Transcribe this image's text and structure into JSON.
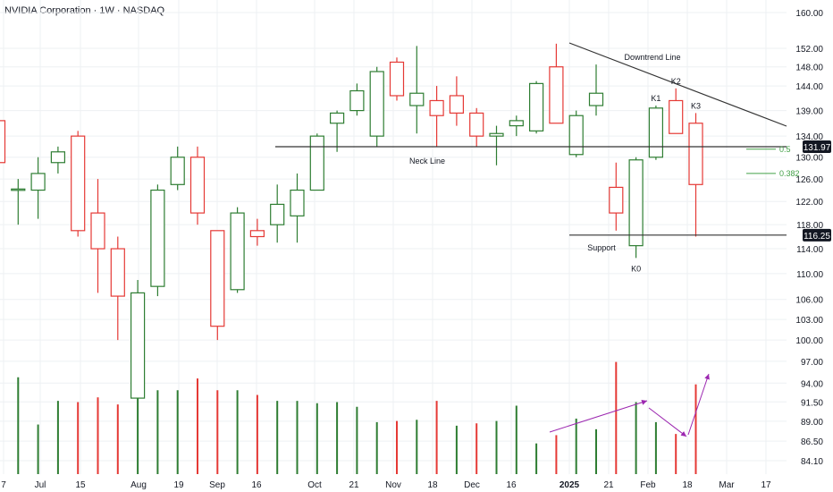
{
  "header": {
    "title": "NVIDIA Corporation · 1W · NASDAQ"
  },
  "colors": {
    "up": "#2e7d32",
    "down": "#e53935",
    "vol_up": "#2e7d32",
    "vol_down": "#e53935",
    "line": "#333333",
    "fib": "#43a047",
    "arrow": "#9c27b0",
    "grid": "#eef0f3",
    "text": "#131722"
  },
  "chart_data": {
    "type": "candlestick",
    "y_axis": {
      "ticks": [
        160.0,
        152.0,
        148.0,
        144.0,
        139.0,
        134.0,
        130.0,
        126.0,
        122.0,
        118.0,
        114.0,
        110.0,
        106.0,
        103.0,
        100.0,
        97.0,
        94.0,
        91.5,
        89.0,
        86.5,
        84.1
      ],
      "tick_labels": [
        "160.00",
        "152.00",
        "148.00",
        "144.00",
        "139.00",
        "134.00",
        "130.00",
        "126.00",
        "122.00",
        "118.00",
        "114.00",
        "110.00",
        "106.00",
        "103.00",
        "100.00",
        "97.00",
        "94.00",
        "91.50",
        "89.00",
        "86.50",
        "84.10"
      ],
      "price_labels": [
        "131.97",
        "116.25"
      ]
    },
    "x_axis": {
      "tick_labels": [
        "7",
        "Jul",
        "15",
        "Aug",
        "19",
        "Sep",
        "16",
        "Oct",
        "21",
        "Nov",
        "18",
        "Dec",
        "16",
        "2025",
        "21",
        "Feb",
        "18",
        "Mar",
        "17"
      ]
    },
    "candles": [
      {
        "o": 137.0,
        "h": 142.0,
        "l": 125.0,
        "c": 129.0
      },
      {
        "o": 124.0,
        "h": 126.0,
        "l": 118.0,
        "c": 124.2
      },
      {
        "o": 124.0,
        "h": 130.0,
        "l": 119.0,
        "c": 127.0
      },
      {
        "o": 129.0,
        "h": 132.0,
        "l": 127.0,
        "c": 131.0
      },
      {
        "o": 134.0,
        "h": 135.0,
        "l": 116.0,
        "c": 117.0
      },
      {
        "o": 120.0,
        "h": 126.0,
        "l": 107.0,
        "c": 114.0
      },
      {
        "o": 114.0,
        "h": 116.0,
        "l": 100.0,
        "c": 106.5
      },
      {
        "o": 92.0,
        "h": 109.0,
        "l": 92.0,
        "c": 107.0
      },
      {
        "o": 108.0,
        "h": 125.0,
        "l": 106.5,
        "c": 124.0
      },
      {
        "o": 125.0,
        "h": 132.0,
        "l": 124.0,
        "c": 130.0
      },
      {
        "o": 130.0,
        "h": 132.0,
        "l": 118.0,
        "c": 120.0
      },
      {
        "o": 117.0,
        "h": 117.0,
        "l": 100.0,
        "c": 102.0
      },
      {
        "o": 107.5,
        "h": 121.0,
        "l": 107.0,
        "c": 120.0
      },
      {
        "o": 117.0,
        "h": 119.0,
        "l": 114.5,
        "c": 116.0
      },
      {
        "o": 118.0,
        "h": 125.0,
        "l": 115.0,
        "c": 121.5
      },
      {
        "o": 119.5,
        "h": 127.0,
        "l": 115.0,
        "c": 124.0
      },
      {
        "o": 124.0,
        "h": 134.5,
        "l": 124.0,
        "c": 134.0
      },
      {
        "o": 136.5,
        "h": 139.0,
        "l": 131.0,
        "c": 138.5
      },
      {
        "o": 139.0,
        "h": 144.5,
        "l": 138.0,
        "c": 143.0
      },
      {
        "o": 134.0,
        "h": 148.0,
        "l": 132.0,
        "c": 147.0
      },
      {
        "o": 149.0,
        "h": 150.0,
        "l": 141.0,
        "c": 142.0
      },
      {
        "o": 140.0,
        "h": 152.5,
        "l": 134.5,
        "c": 142.5
      },
      {
        "o": 141.0,
        "h": 144.0,
        "l": 132.0,
        "c": 138.0
      },
      {
        "o": 142.0,
        "h": 146.0,
        "l": 136.0,
        "c": 138.5
      },
      {
        "o": 138.5,
        "h": 139.5,
        "l": 132.0,
        "c": 134.0
      },
      {
        "o": 134.0,
        "h": 136.0,
        "l": 128.5,
        "c": 134.5
      },
      {
        "o": 136.0,
        "h": 138.0,
        "l": 134.0,
        "c": 137.0
      },
      {
        "o": 135.0,
        "h": 145.0,
        "l": 134.5,
        "c": 144.5
      },
      {
        "o": 148.0,
        "h": 153.0,
        "l": 136.5,
        "c": 136.5
      },
      {
        "o": 130.5,
        "h": 139.0,
        "l": 130.0,
        "c": 138.0
      },
      {
        "o": 140.0,
        "h": 148.5,
        "l": 138.0,
        "c": 142.5
      },
      {
        "o": 124.5,
        "h": 129.0,
        "l": 117.0,
        "c": 120.0
      },
      {
        "o": 114.5,
        "h": 130.0,
        "l": 112.5,
        "c": 129.5
      },
      {
        "o": 130.0,
        "h": 140.0,
        "l": 129.5,
        "c": 139.5
      },
      {
        "o": 141.0,
        "h": 143.5,
        "l": 134.5,
        "c": 134.5
      },
      {
        "o": 136.5,
        "h": 138.5,
        "l": 116.0,
        "c": 125.0
      }
    ],
    "volume_direction": [
      "down",
      "up",
      "up",
      "up",
      "down",
      "down",
      "down",
      "up",
      "up",
      "up",
      "down",
      "down",
      "up",
      "down",
      "up",
      "up",
      "up",
      "up",
      "up",
      "up",
      "down",
      "up",
      "down",
      "up",
      "down",
      "up",
      "up",
      "up",
      "down",
      "up",
      "up",
      "down",
      "up",
      "up",
      "down",
      "down"
    ],
    "volume_rel": [
      0.78,
      0.82,
      0.42,
      0.62,
      0.61,
      0.65,
      0.59,
      1.0,
      0.71,
      0.71,
      0.81,
      0.71,
      0.71,
      0.67,
      0.62,
      0.62,
      0.6,
      0.61,
      0.57,
      0.44,
      0.45,
      0.46,
      0.62,
      0.41,
      0.43,
      0.45,
      0.58,
      0.26,
      0.33,
      0.47,
      0.38,
      0.95,
      0.61,
      0.44,
      0.34,
      0.76
    ],
    "neck_line": {
      "price": 131.97,
      "label": "Neck Line"
    },
    "support": {
      "price": 116.25,
      "label": "Support"
    },
    "downtrend_line": {
      "label": "Downtrend Line"
    },
    "fib_labels": [
      {
        "label": "0.5",
        "price": 131.5
      },
      {
        "label": "0.382",
        "price": 127.0
      }
    ],
    "candle_labels": [
      {
        "label": "K0",
        "index": 32,
        "pos": "below"
      },
      {
        "label": "K1",
        "index": 33,
        "pos": "above"
      },
      {
        "label": "K2",
        "index": 34,
        "pos": "above"
      },
      {
        "label": "K3",
        "index": 35,
        "pos": "above"
      }
    ]
  }
}
